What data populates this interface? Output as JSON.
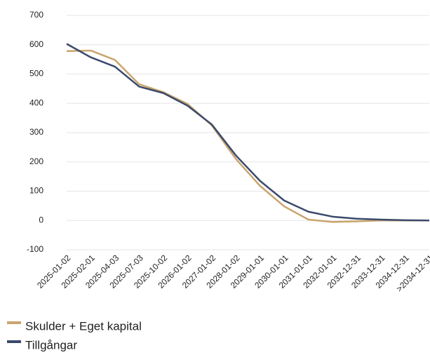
{
  "chart_data": {
    "type": "line",
    "categories": [
      "2025-01-02",
      "2025-02-01",
      "2025-04-03",
      "2025-07-03",
      "2025-10-02",
      "2026-01-02",
      "2027-01-02",
      "2028-01-02",
      "2029-01-01",
      "2030-01-01",
      "2031-01-01",
      "2032-01-01",
      "2032-12-31",
      "2033-12-31",
      "2034-12-31",
      ">2034-12-31"
    ],
    "series": [
      {
        "name": "Skulder + Eget kapital",
        "color": "#c9a56e",
        "values": [
          578,
          580,
          548,
          465,
          438,
          398,
          325,
          210,
          118,
          48,
          3,
          -5,
          -3,
          0,
          0,
          0
        ]
      },
      {
        "name": "Tillgångar",
        "color": "#3b4a6b",
        "values": [
          603,
          557,
          525,
          457,
          435,
          392,
          328,
          222,
          135,
          68,
          30,
          13,
          6,
          3,
          1,
          0
        ]
      }
    ],
    "ylim": [
      -100,
      700
    ],
    "yticks": [
      -100,
      0,
      100,
      200,
      300,
      400,
      500,
      600,
      700
    ],
    "grid": true,
    "legend": "bottom-left"
  }
}
